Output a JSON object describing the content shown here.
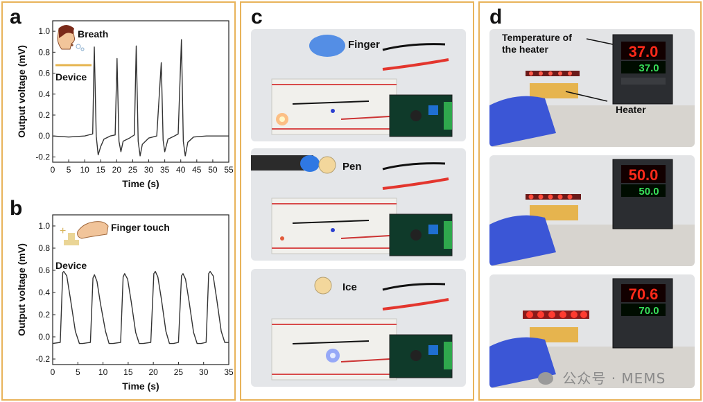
{
  "panels": {
    "a": {
      "label": "a"
    },
    "b": {
      "label": "b"
    },
    "c": {
      "label": "c"
    },
    "d": {
      "label": "d"
    }
  },
  "chart_data": [
    {
      "type": "line",
      "panel": "a",
      "xlabel": "Time (s)",
      "ylabel": "Output voltage (mV)",
      "xlim": [
        0,
        55
      ],
      "ylim": [
        -0.25,
        1.1
      ],
      "xticks": [
        0,
        5,
        10,
        15,
        20,
        25,
        30,
        35,
        40,
        45,
        50,
        55
      ],
      "yticks": [
        -0.2,
        0.0,
        0.2,
        0.4,
        0.6,
        0.8,
        1.0
      ],
      "grid": false,
      "annotations": [
        "Breath",
        "Device"
      ],
      "series": [
        {
          "x": [
            0,
            5,
            10,
            12.5,
            13.0,
            13.6,
            14.2,
            15.0,
            16,
            18,
            19.5,
            20.1,
            20.7,
            21.3,
            22,
            24,
            25.5,
            26.1,
            26.7,
            27.3,
            28,
            30,
            32.5,
            33.9,
            34.5,
            35.0,
            36,
            38,
            39.2,
            40.2,
            40.8,
            41.4,
            42.2,
            44,
            48,
            52,
            55
          ],
          "y": [
            0.0,
            -0.01,
            0.0,
            0.02,
            0.85,
            0.0,
            -0.18,
            -0.1,
            -0.03,
            0.0,
            0.01,
            0.74,
            -0.05,
            -0.15,
            -0.05,
            -0.02,
            0.01,
            0.86,
            -0.05,
            -0.19,
            -0.08,
            -0.02,
            0.0,
            0.7,
            -0.04,
            -0.15,
            -0.03,
            0.0,
            0.02,
            0.92,
            -0.05,
            -0.19,
            -0.06,
            -0.01,
            0.0,
            0.0,
            0.0
          ]
        }
      ]
    },
    {
      "type": "line",
      "panel": "b",
      "xlabel": "Time (s)",
      "ylabel": "Output voltage (mV)",
      "xlim": [
        0,
        35
      ],
      "ylim": [
        -0.25,
        1.1
      ],
      "xticks": [
        0,
        5,
        10,
        15,
        20,
        25,
        30,
        35
      ],
      "yticks": [
        -0.2,
        0.0,
        0.2,
        0.4,
        0.6,
        0.8,
        1.0
      ],
      "grid": false,
      "annotations": [
        "Finger touch",
        "Device"
      ],
      "series": [
        {
          "x": [
            0,
            1.5,
            2.0,
            2.2,
            2.8,
            3.5,
            4.5,
            5.3,
            6.0,
            7.5,
            8.0,
            8.3,
            8.8,
            9.5,
            10.5,
            11.2,
            12.0,
            13.5,
            14.0,
            14.3,
            14.9,
            15.6,
            16.5,
            17.2,
            18.0,
            19.5,
            20.1,
            20.4,
            20.9,
            21.6,
            22.5,
            23.2,
            24.0,
            25.0,
            25.6,
            25.9,
            26.4,
            27.1,
            28.0,
            28.7,
            29.5,
            30.5,
            31.0,
            31.3,
            31.9,
            32.6,
            33.5,
            34.2,
            35.0
          ],
          "y": [
            -0.06,
            -0.05,
            0.58,
            0.59,
            0.55,
            0.35,
            0.05,
            -0.06,
            -0.06,
            -0.05,
            0.53,
            0.56,
            0.5,
            0.3,
            0.05,
            -0.06,
            -0.06,
            -0.05,
            0.54,
            0.57,
            0.52,
            0.32,
            0.04,
            -0.06,
            -0.06,
            -0.05,
            0.57,
            0.59,
            0.54,
            0.34,
            0.05,
            -0.06,
            -0.06,
            -0.05,
            0.55,
            0.57,
            0.52,
            0.32,
            0.04,
            -0.06,
            -0.06,
            -0.05,
            0.57,
            0.59,
            0.55,
            0.34,
            0.05,
            -0.05,
            -0.05
          ]
        }
      ]
    }
  ],
  "panel_c": {
    "captions": [
      "Finger",
      "Pen",
      "Ice"
    ]
  },
  "panel_d": {
    "callout_temperature": "Temperature of\nthe heater",
    "callout_heater": "Heater",
    "readouts": [
      {
        "pv": "37.0",
        "sv": "37.0"
      },
      {
        "pv": "50.0",
        "sv": "50.0"
      },
      {
        "pv": "70.6",
        "sv": "70.0"
      }
    ]
  },
  "watermark": {
    "text": "公众号 · MEMS"
  },
  "colors": {
    "border": "#e8b35a",
    "line": "#333333",
    "led_red": "#ff3b30",
    "led_blue": "#3c5bff",
    "display_red": "#ff2a1a",
    "display_green": "#38e05a"
  }
}
